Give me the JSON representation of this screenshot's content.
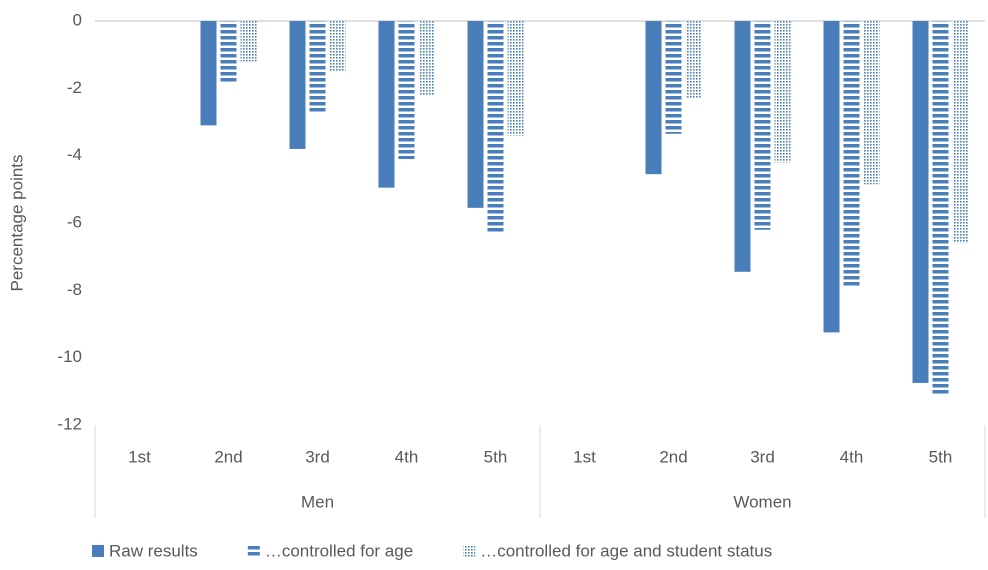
{
  "chart_data": {
    "type": "bar",
    "y_label": "Percentage points",
    "categories": [
      "1st",
      "2nd",
      "3rd",
      "4th",
      "5th",
      "1st",
      "2nd",
      "3rd",
      "4th",
      "5th"
    ],
    "groups": [
      "Men",
      "Women"
    ],
    "series": [
      {
        "name": "Raw results",
        "color": "#4a7ebb",
        "pattern": "solid",
        "values": [
          0,
          -3.1,
          -3.8,
          -4.95,
          -5.55,
          0,
          -4.55,
          -7.45,
          -9.25,
          -10.75
        ]
      },
      {
        "name": "…controlled for age",
        "color": "#4a7ebb",
        "pattern": "stripes",
        "values": [
          0,
          -1.8,
          -2.75,
          -4.1,
          -6.3,
          0,
          -3.35,
          -6.2,
          -7.9,
          -11.1
        ]
      },
      {
        "name": "…controlled for age and student status",
        "color": "#4a7ebb",
        "pattern": "dots",
        "values": [
          0,
          -1.2,
          -1.5,
          -2.2,
          -3.4,
          0,
          -2.3,
          -4.2,
          -4.85,
          -6.6
        ]
      }
    ],
    "ylim": [
      -12,
      0
    ],
    "yticks": [
      0,
      -2,
      -4,
      -6,
      -8,
      -10,
      -12
    ],
    "grid": false
  }
}
